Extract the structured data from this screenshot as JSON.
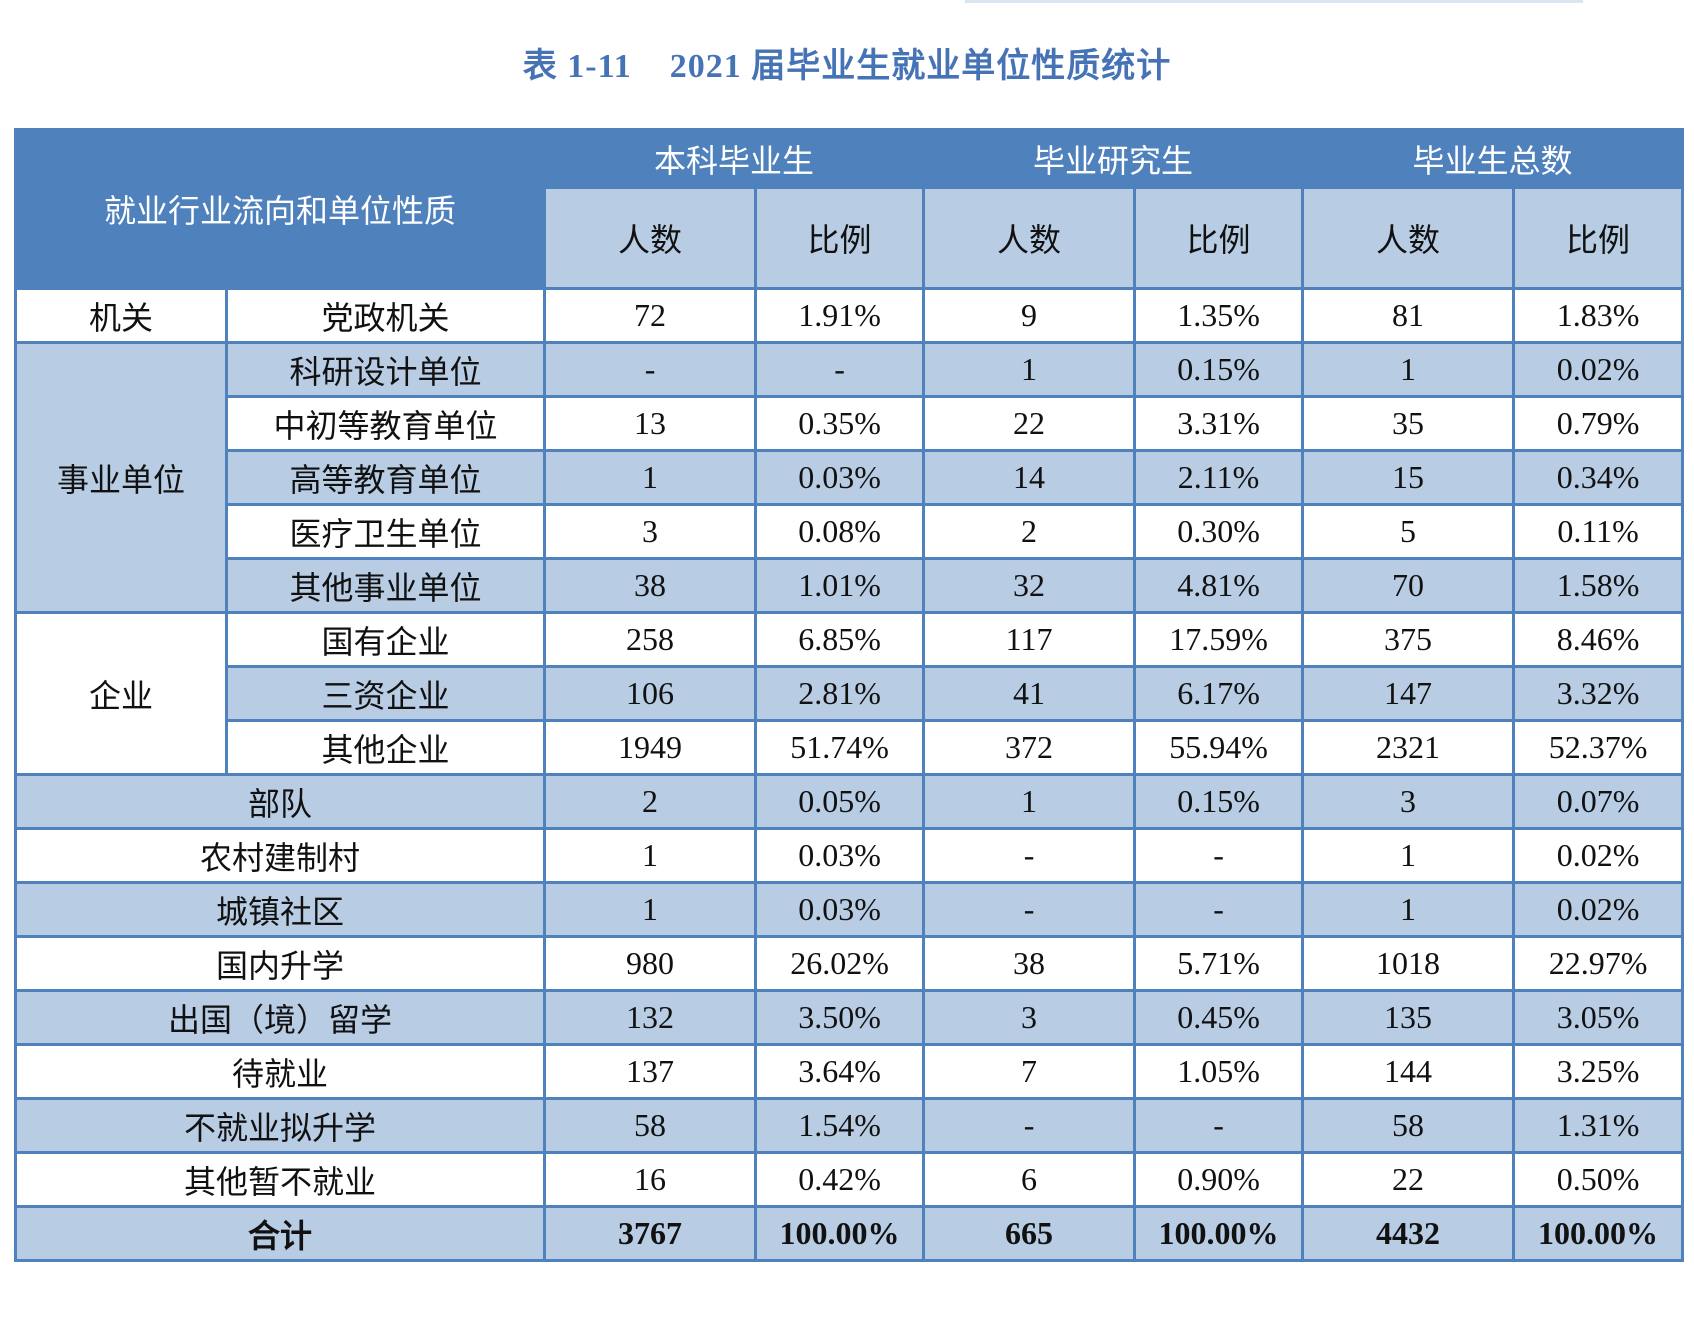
{
  "title": "表 1-11    2021 届毕业生就业单位性质统计",
  "colors": {
    "header": "#4f81bd",
    "stripe": "#b8cce4",
    "title": "#4573b5"
  },
  "header": {
    "corner": "就业行业流向和单位性质",
    "groups": [
      "本科毕业生",
      "毕业研究生",
      "毕业生总数"
    ],
    "sub": [
      "人数",
      "比例",
      "人数",
      "比例",
      "人数",
      "比例"
    ]
  },
  "groups": [
    {
      "label": "机关",
      "rows": [
        {
          "label": "党政机关",
          "values": [
            "72",
            "1.91%",
            "9",
            "1.35%",
            "81",
            "1.83%"
          ]
        }
      ]
    },
    {
      "label": "事业单位",
      "rows": [
        {
          "label": "科研设计单位",
          "values": [
            "-",
            "-",
            "1",
            "0.15%",
            "1",
            "0.02%"
          ]
        },
        {
          "label": "中初等教育单位",
          "values": [
            "13",
            "0.35%",
            "22",
            "3.31%",
            "35",
            "0.79%"
          ]
        },
        {
          "label": "高等教育单位",
          "values": [
            "1",
            "0.03%",
            "14",
            "2.11%",
            "15",
            "0.34%"
          ]
        },
        {
          "label": "医疗卫生单位",
          "values": [
            "3",
            "0.08%",
            "2",
            "0.30%",
            "5",
            "0.11%"
          ]
        },
        {
          "label": "其他事业单位",
          "values": [
            "38",
            "1.01%",
            "32",
            "4.81%",
            "70",
            "1.58%"
          ]
        }
      ]
    },
    {
      "label": "企业",
      "rows": [
        {
          "label": "国有企业",
          "values": [
            "258",
            "6.85%",
            "117",
            "17.59%",
            "375",
            "8.46%"
          ]
        },
        {
          "label": "三资企业",
          "values": [
            "106",
            "2.81%",
            "41",
            "6.17%",
            "147",
            "3.32%"
          ]
        },
        {
          "label": "其他企业",
          "values": [
            "1949",
            "51.74%",
            "372",
            "55.94%",
            "2321",
            "52.37%"
          ]
        }
      ]
    }
  ],
  "rows": [
    {
      "label": "部队",
      "values": [
        "2",
        "0.05%",
        "1",
        "0.15%",
        "3",
        "0.07%"
      ]
    },
    {
      "label": "农村建制村",
      "values": [
        "1",
        "0.03%",
        "-",
        "-",
        "1",
        "0.02%"
      ]
    },
    {
      "label": "城镇社区",
      "values": [
        "1",
        "0.03%",
        "-",
        "-",
        "1",
        "0.02%"
      ]
    },
    {
      "label": "国内升学",
      "values": [
        "980",
        "26.02%",
        "38",
        "5.71%",
        "1018",
        "22.97%"
      ]
    },
    {
      "label": "出国（境）留学",
      "values": [
        "132",
        "3.50%",
        "3",
        "0.45%",
        "135",
        "3.05%"
      ]
    },
    {
      "label": "待就业",
      "values": [
        "137",
        "3.64%",
        "7",
        "1.05%",
        "144",
        "3.25%"
      ]
    },
    {
      "label": "不就业拟升学",
      "values": [
        "58",
        "1.54%",
        "-",
        "-",
        "58",
        "1.31%"
      ]
    },
    {
      "label": "其他暂不就业",
      "values": [
        "16",
        "0.42%",
        "6",
        "0.90%",
        "22",
        "0.50%"
      ]
    }
  ],
  "total": {
    "label": "合计",
    "values": [
      "3767",
      "100.00%",
      "665",
      "100.00%",
      "4432",
      "100.00%"
    ]
  }
}
